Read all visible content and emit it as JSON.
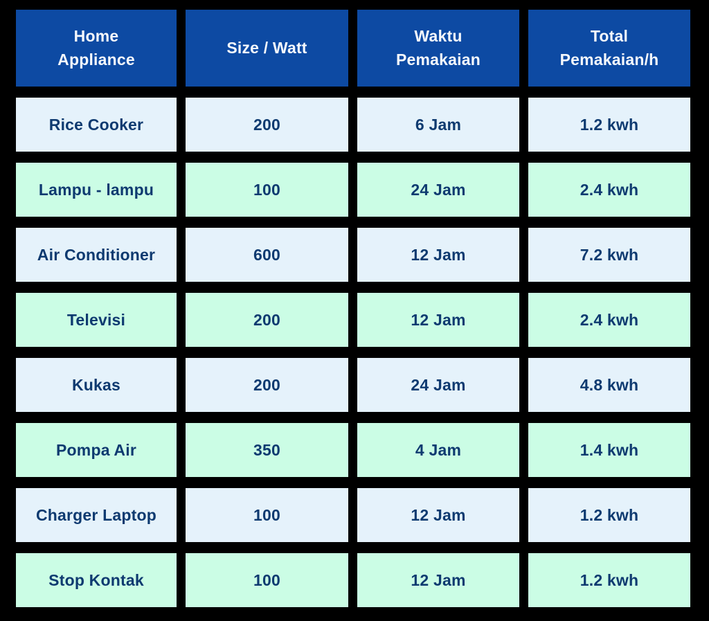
{
  "chart_data": {
    "type": "table",
    "title": "",
    "columns": [
      "Home Appliance",
      "Size / Watt",
      "Waktu Pemakaian",
      "Total Pemakaian/h"
    ],
    "rows": [
      [
        "Rice Cooker",
        "200",
        "6 Jam",
        "1.2 kwh"
      ],
      [
        "Lampu - lampu",
        "100",
        "24 Jam",
        "2.4 kwh"
      ],
      [
        "Air Conditioner",
        "600",
        "12 Jam",
        "7.2 kwh"
      ],
      [
        "Televisi",
        "200",
        "12 Jam",
        "2.4 kwh"
      ],
      [
        "Kukas",
        "200",
        "24 Jam",
        "4.8 kwh"
      ],
      [
        "Pompa Air",
        "350",
        "4 Jam",
        "1.4 kwh"
      ],
      [
        "Charger Laptop",
        "100",
        "12 Jam",
        "1.2 kwh"
      ],
      [
        "Stop Kontak",
        "100",
        "12 Jam",
        "1.2 kwh"
      ]
    ],
    "layout": {
      "header_position": "top",
      "row_alternating_colors": true,
      "grid": "gapped-cells-on-dark-background"
    }
  },
  "colors": {
    "page_background": "#000000",
    "header_background": "#0d4aa3",
    "header_text": "#f5f8fc",
    "row_light_blue": "#e5f2fb",
    "row_light_green": "#cbfde5",
    "cell_text": "#0e3a70"
  }
}
